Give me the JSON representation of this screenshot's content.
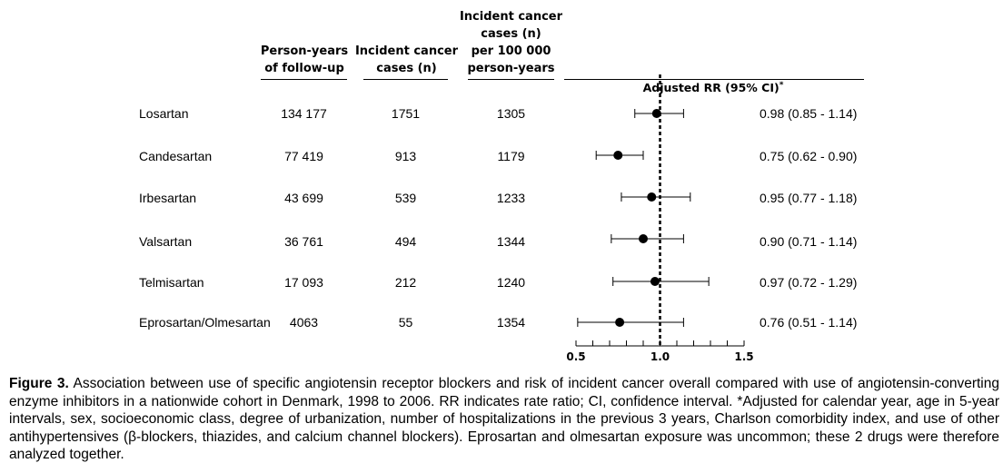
{
  "headers": {
    "person_years": "Person-years\nof follow-up",
    "cases": "Incident cancer\ncases (n)",
    "rate": "Incident cancer\ncases (n)\nper 100 000\nperson-years",
    "rr": "Adjusted RR (95% CI)",
    "rr_mark": "*"
  },
  "rows": [
    {
      "drug": "Losartan",
      "person_years": "134 177",
      "cases": "1751",
      "rate": "1305",
      "ci_text": "0.98 (0.85 - 1.14)"
    },
    {
      "drug": "Candesartan",
      "person_years": "77 419",
      "cases": "913",
      "rate": "1179",
      "ci_text": "0.75 (0.62 - 0.90)"
    },
    {
      "drug": "Irbesartan",
      "person_years": "43 699",
      "cases": "539",
      "rate": "1233",
      "ci_text": "0.95 (0.77 - 1.18)"
    },
    {
      "drug": "Valsartan",
      "person_years": "36 761",
      "cases": "494",
      "rate": "1344",
      "ci_text": "0.90 (0.71 - 1.14)"
    },
    {
      "drug": "Telmisartan",
      "person_years": "17 093",
      "cases": "212",
      "rate": "1240",
      "ci_text": "0.97 (0.72 - 1.29)"
    },
    {
      "drug": "Eprosartan/Olmesartan",
      "person_years": "4063",
      "cases": "55",
      "rate": "1354",
      "ci_text": "0.76 (0.51 - 1.14)"
    }
  ],
  "chart_data": {
    "type": "scatter",
    "subtype": "forest-plot",
    "categories": [
      "Losartan",
      "Candesartan",
      "Irbesartan",
      "Valsartan",
      "Telmisartan",
      "Eprosartan/Olmesartan"
    ],
    "estimates": [
      0.98,
      0.75,
      0.95,
      0.9,
      0.97,
      0.76
    ],
    "ci_lower": [
      0.85,
      0.62,
      0.77,
      0.71,
      0.72,
      0.51
    ],
    "ci_upper": [
      1.14,
      0.9,
      1.18,
      1.14,
      1.29,
      1.14
    ],
    "reference_line": 1.0,
    "xlim": [
      0.5,
      1.5
    ],
    "xticks": [
      "0.5",
      "1.0",
      "1.5"
    ],
    "minor_tick_step": 0.1,
    "xlabel": "",
    "title": "Adjusted RR (95% CI)"
  },
  "caption": {
    "label": "Figure 3.",
    "text": "Association between use of specific angiotensin receptor blockers and risk of incident cancer overall compared with use of angiotensin-converting enzyme inhibitors in a nationwide cohort in Denmark, 1998 to 2006. RR indicates rate ratio; CI, confidence interval. *Adjusted for calendar year, age in 5-year intervals, sex, socioeconomic class, degree of urbanization, number of hospitalizations in the previous 3 years, Charlson comorbidity index, and use of other antihypertensives (β-blockers, thiazides, and calcium channel blockers). Eprosartan and olmesartan exposure was uncommon; these 2 drugs were therefore analyzed together."
  }
}
